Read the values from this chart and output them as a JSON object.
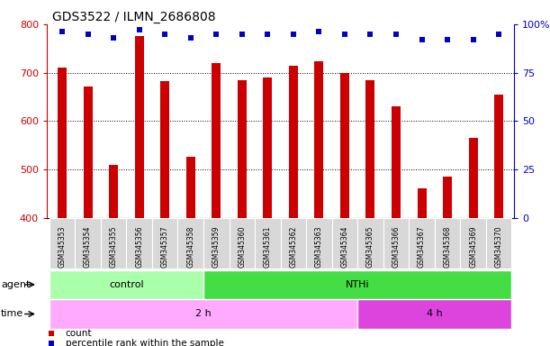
{
  "title": "GDS3522 / ILMN_2686808",
  "categories": [
    "GSM345353",
    "GSM345354",
    "GSM345355",
    "GSM345356",
    "GSM345357",
    "GSM345358",
    "GSM345359",
    "GSM345360",
    "GSM345361",
    "GSM345362",
    "GSM345363",
    "GSM345364",
    "GSM345365",
    "GSM345366",
    "GSM345367",
    "GSM345368",
    "GSM345369",
    "GSM345370"
  ],
  "bar_values": [
    710,
    672,
    510,
    775,
    682,
    527,
    720,
    685,
    690,
    715,
    724,
    700,
    685,
    630,
    462,
    485,
    565,
    655
  ],
  "percentile_values": [
    96,
    95,
    93,
    97,
    95,
    93,
    95,
    95,
    95,
    95,
    96,
    95,
    95,
    95,
    92,
    92,
    92,
    95
  ],
  "bar_color": "#cc0000",
  "percentile_color": "#0000cc",
  "ylim_left": [
    400,
    800
  ],
  "ylim_right": [
    0,
    100
  ],
  "yticks_left": [
    400,
    500,
    600,
    700,
    800
  ],
  "yticks_right": [
    0,
    25,
    50,
    75,
    100
  ],
  "ytick_labels_right": [
    "0",
    "25",
    "50",
    "75",
    "100%"
  ],
  "grid_values": [
    500,
    600,
    700
  ],
  "agent_groups": [
    {
      "label": "control",
      "start": 0,
      "end": 6,
      "color": "#aaffaa"
    },
    {
      "label": "NTHi",
      "start": 6,
      "end": 18,
      "color": "#44dd44"
    }
  ],
  "time_groups": [
    {
      "label": "2 h",
      "start": 0,
      "end": 12,
      "color": "#ffaaff"
    },
    {
      "label": "4 h",
      "start": 12,
      "end": 18,
      "color": "#dd44dd"
    }
  ],
  "agent_label": "agent",
  "time_label": "time",
  "legend_count_label": "count",
  "legend_percentile_label": "percentile rank within the sample",
  "tick_bg_color": "#d8d8d8"
}
